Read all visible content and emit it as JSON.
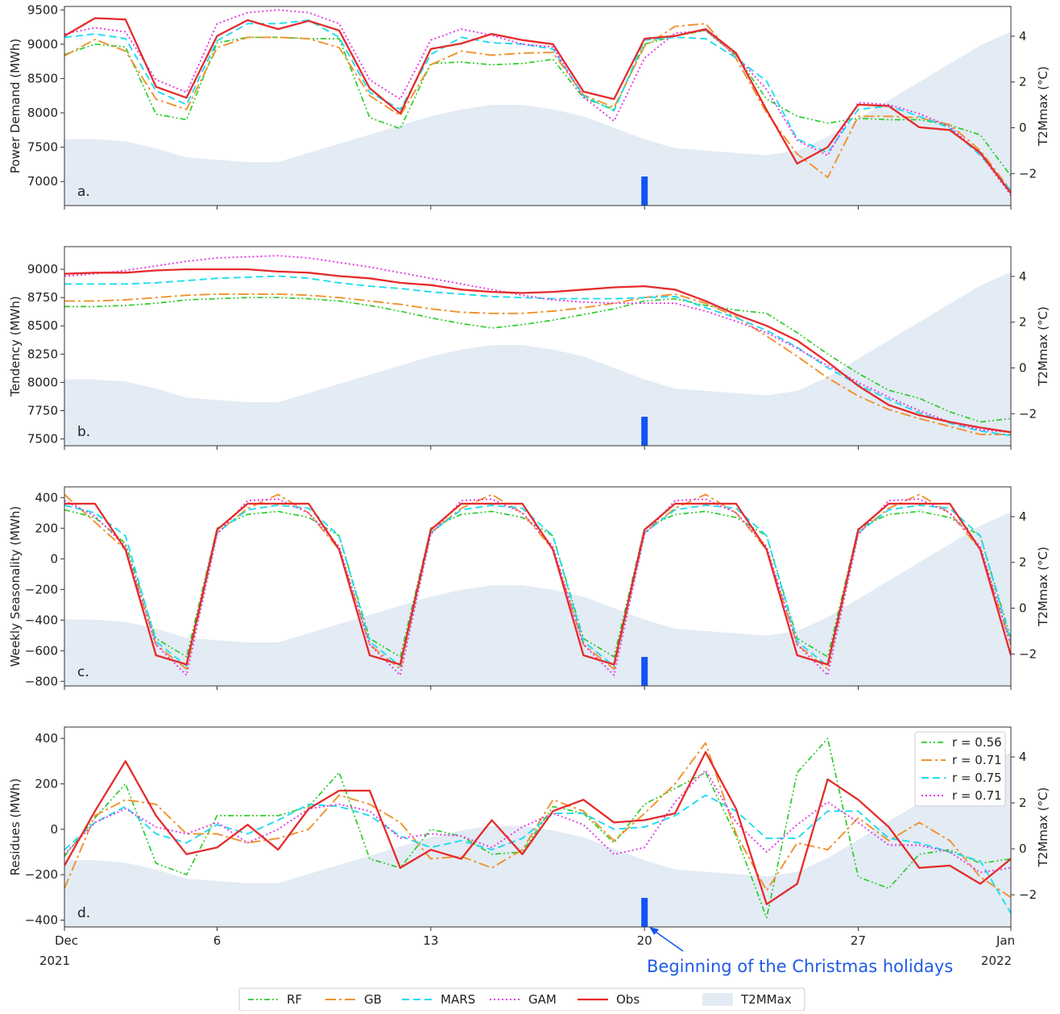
{
  "chart_data": {
    "type": "line",
    "x_ticks": [
      {
        "day": 1,
        "lines": [
          "Dec",
          "2021"
        ]
      },
      {
        "day": 6,
        "lines": [
          "6"
        ]
      },
      {
        "day": 13,
        "lines": [
          "13"
        ]
      },
      {
        "day": 20,
        "lines": [
          "20"
        ]
      },
      {
        "day": 27,
        "lines": [
          "27"
        ]
      },
      {
        "day": 32,
        "lines": [
          "Jan",
          "2022"
        ]
      }
    ],
    "xlim": [
      1,
      32
    ],
    "colors": {
      "RF": "#2bcc2b",
      "GB": "#f0922e",
      "MARS": "#1edcf0",
      "GAM": "#e23be6",
      "Obs": "#e52b2b",
      "T2MMax": "#e3ebf4",
      "marker": "#1154f2"
    },
    "t2mmax": [
      -0.5,
      -0.5,
      -0.6,
      -0.9,
      -1.3,
      -1.4,
      -1.5,
      -1.5,
      -1.1,
      -0.7,
      -0.3,
      0.1,
      0.5,
      0.8,
      1.0,
      1.0,
      0.8,
      0.5,
      0.0,
      -0.5,
      -0.9,
      -1.0,
      -1.1,
      -1.2,
      -1.0,
      -0.4,
      0.4,
      1.2,
      2.0,
      2.8,
      3.6,
      4.2,
      4.4
    ],
    "legend": {
      "series": [
        "RF",
        "GB",
        "MARS",
        "GAM",
        "Obs",
        "T2MMax"
      ],
      "corr": [
        "r = 0.56",
        "r = 0.71",
        "r = 0.75",
        "r = 0.71"
      ]
    },
    "annotation": {
      "day": 20,
      "text": "Beginning of the Christmas holidays"
    },
    "panels": [
      {
        "letter": "a.",
        "ylabel": "Power Demand (MWh)",
        "ylim": [
          6650,
          9550
        ],
        "yticks": [
          7000,
          7500,
          8000,
          8500,
          9000,
          9500
        ],
        "yticks_fmt": [
          "7000",
          "7500",
          "8000",
          "8500",
          "9000",
          "9500"
        ],
        "y2label": "T2Mmax (°C)",
        "t2lim": [
          -3.4,
          5.3
        ],
        "t2ticks": [
          -2,
          0,
          2,
          4
        ],
        "t2ticks_fmt": [
          "−2",
          "0",
          "2",
          "4"
        ],
        "series": [
          {
            "name": "RF",
            "values": [
              8850,
              9000,
              8960,
              7980,
              7900,
              9020,
              9100,
              9100,
              9080,
              9080,
              7930,
              7770,
              8720,
              8740,
              8700,
              8720,
              8780,
              8220,
              8050,
              9000,
              9120,
              9200,
              8840,
              8200,
              7950,
              7850,
              7920,
              7900,
              7900,
              7820,
              7680,
              7080
            ]
          },
          {
            "name": "GB",
            "values": [
              8830,
              9070,
              8900,
              8200,
              8050,
              8950,
              9100,
              9100,
              9080,
              8950,
              8250,
              7960,
              8700,
              8900,
              8840,
              8870,
              8880,
              8260,
              8080,
              8970,
              9260,
              9300,
              8790,
              8000,
              7400,
              7060,
              7950,
              7950,
              7930,
              7830,
              7450,
              6870
            ]
          },
          {
            "name": "MARS",
            "values": [
              9100,
              9150,
              9080,
              8320,
              8120,
              9050,
              9300,
              9300,
              9350,
              9100,
              8300,
              8050,
              8850,
              9100,
              9020,
              9000,
              8930,
              8250,
              8030,
              9060,
              9100,
              9080,
              8800,
              8460,
              7620,
              7420,
              8050,
              8100,
              7950,
              7780,
              7380,
              6870
            ]
          },
          {
            "name": "GAM",
            "values": [
              9150,
              9240,
              9180,
              8480,
              8300,
              9300,
              9460,
              9500,
              9460,
              9300,
              8480,
              8200,
              9060,
              9220,
              9130,
              9000,
              8960,
              8230,
              7880,
              8800,
              9160,
              9200,
              8830,
              8340,
              7600,
              7380,
              8150,
              8120,
              7990,
              7800,
              7400,
              6800
            ]
          },
          {
            "name": "Obs",
            "values": [
              9120,
              9380,
              9360,
              8380,
              8220,
              9120,
              9350,
              9220,
              9340,
              9200,
              8360,
              7990,
              8930,
              9010,
              9150,
              9060,
              9000,
              8310,
              8200,
              9080,
              9120,
              9220,
              8870,
              8040,
              7260,
              7500,
              8120,
              8100,
              7790,
              7750,
              7420,
              6830
            ]
          }
        ]
      },
      {
        "letter": "b.",
        "ylabel": "Tendency (MWh)",
        "ylim": [
          7440,
          9200
        ],
        "yticks": [
          7500,
          7750,
          8000,
          8250,
          8500,
          8750,
          9000
        ],
        "yticks_fmt": [
          "7500",
          "7750",
          "8000",
          "8250",
          "8500",
          "8750",
          "9000"
        ],
        "y2label": "T2Mmax (°C)",
        "t2lim": [
          -3.4,
          5.3
        ],
        "t2ticks": [
          -2,
          0,
          2,
          4
        ],
        "t2ticks_fmt": [
          "−2",
          "0",
          "2",
          "4"
        ],
        "series": [
          {
            "name": "RF",
            "values": [
              8670,
              8670,
              8680,
              8700,
              8730,
              8740,
              8750,
              8750,
              8740,
              8720,
              8680,
              8630,
              8570,
              8520,
              8480,
              8510,
              8550,
              8600,
              8650,
              8720,
              8740,
              8680,
              8640,
              8610,
              8440,
              8250,
              8080,
              7930,
              7860,
              7740,
              7650,
              7680,
              7780
            ]
          },
          {
            "name": "GB",
            "values": [
              8720,
              8720,
              8730,
              8750,
              8770,
              8780,
              8780,
              8780,
              8770,
              8750,
              8720,
              8690,
              8650,
              8620,
              8610,
              8610,
              8630,
              8660,
              8700,
              8750,
              8780,
              8700,
              8580,
              8410,
              8230,
              8040,
              7880,
              7760,
              7680,
              7610,
              7540,
              7540,
              7610
            ]
          },
          {
            "name": "MARS",
            "values": [
              8870,
              8870,
              8870,
              8880,
              8900,
              8920,
              8930,
              8940,
              8920,
              8880,
              8850,
              8830,
              8800,
              8780,
              8760,
              8750,
              8740,
              8740,
              8740,
              8750,
              8760,
              8660,
              8570,
              8460,
              8310,
              8130,
              7980,
              7850,
              7730,
              7640,
              7570,
              7530,
              7560
            ]
          },
          {
            "name": "GAM",
            "values": [
              8940,
              8960,
              8990,
              9030,
              9070,
              9100,
              9110,
              9120,
              9100,
              9060,
              9020,
              8970,
              8920,
              8870,
              8820,
              8770,
              8730,
              8710,
              8700,
              8700,
              8700,
              8630,
              8540,
              8440,
              8300,
              8150,
              8000,
              7870,
              7750,
              7650,
              7580,
              7560,
              7580
            ]
          },
          {
            "name": "Obs",
            "values": [
              8960,
              8970,
              8970,
              8990,
              9000,
              9000,
              9000,
              8980,
              8970,
              8940,
              8920,
              8880,
              8860,
              8820,
              8800,
              8790,
              8800,
              8820,
              8840,
              8850,
              8820,
              8720,
              8600,
              8500,
              8370,
              8180,
              7970,
              7800,
              7710,
              7650,
              7600,
              7560,
              7600
            ]
          }
        ]
      },
      {
        "letter": "c.",
        "ylabel": "Weekly Seasonality (MWh)",
        "ylim": [
          -830,
          470
        ],
        "yticks": [
          -800,
          -600,
          -400,
          -200,
          0,
          200,
          400
        ],
        "yticks_fmt": [
          "−800",
          "−600",
          "−400",
          "−200",
          "0",
          "200",
          "400"
        ],
        "y2label": "T2Mmax (°C)",
        "t2lim": [
          -3.4,
          5.3
        ],
        "t2ticks": [
          -2,
          0,
          2,
          4
        ],
        "t2ticks_fmt": [
          "−2",
          "0",
          "2",
          "4"
        ],
        "series": [
          {
            "name": "RF",
            "values": [
              320,
              270,
              100,
              -520,
              -640,
              200,
              290,
              310,
              270,
              150,
              -520,
              -640,
              200,
              290,
              310,
              270,
              150,
              -520,
              -640,
              200,
              290,
              310,
              270,
              150,
              -520,
              -640,
              200,
              290,
              310,
              270,
              150,
              -520
            ]
          },
          {
            "name": "GB",
            "values": [
              420,
              240,
              60,
              -560,
              -720,
              170,
              330,
              420,
              300,
              60,
              -560,
              -720,
              170,
              330,
              420,
              300,
              60,
              -560,
              -720,
              170,
              330,
              420,
              300,
              60,
              -560,
              -720,
              170,
              330,
              420,
              300,
              60,
              -560
            ]
          },
          {
            "name": "MARS",
            "values": [
              350,
              300,
              150,
              -540,
              -700,
              170,
              320,
              350,
              330,
              150,
              -540,
              -700,
              170,
              320,
              350,
              330,
              150,
              -540,
              -700,
              170,
              320,
              350,
              330,
              150,
              -540,
              -700,
              170,
              320,
              350,
              330,
              150,
              -540
            ]
          },
          {
            "name": "GAM",
            "values": [
              380,
              280,
              80,
              -560,
              -760,
              160,
              380,
              390,
              300,
              80,
              -560,
              -760,
              160,
              380,
              390,
              300,
              80,
              -560,
              -760,
              160,
              380,
              390,
              300,
              80,
              -560,
              -760,
              160,
              380,
              390,
              300,
              80,
              -560
            ]
          },
          {
            "name": "Obs",
            "values": [
              360,
              360,
              60,
              -630,
              -690,
              190,
              360,
              360,
              360,
              60,
              -630,
              -690,
              190,
              360,
              360,
              360,
              60,
              -630,
              -690,
              190,
              360,
              360,
              360,
              60,
              -630,
              -690,
              190,
              360,
              360,
              360,
              60,
              -630
            ]
          }
        ]
      },
      {
        "letter": "d.",
        "ylabel": "Residues (MWh)",
        "ylim": [
          -430,
          450
        ],
        "yticks": [
          -400,
          -200,
          0,
          200,
          400
        ],
        "yticks_fmt": [
          "−400",
          "−200",
          "0",
          "200",
          "400"
        ],
        "y2label": "T2Mmax (°C)",
        "t2lim": [
          -3.4,
          5.3
        ],
        "t2ticks": [
          -2,
          0,
          2,
          4
        ],
        "t2ticks_fmt": [
          "−2",
          "0",
          "2",
          "4"
        ],
        "series": [
          {
            "name": "RF",
            "values": [
              -120,
              50,
              200,
              -150,
              -200,
              60,
              60,
              60,
              100,
              250,
              -130,
              -170,
              0,
              -30,
              -110,
              -100,
              100,
              70,
              -60,
              110,
              180,
              250,
              -30,
              -390,
              250,
              400,
              -210,
              -260,
              -110,
              -90,
              -150,
              -130
            ]
          },
          {
            "name": "GB",
            "values": [
              -260,
              60,
              130,
              110,
              -20,
              -20,
              -60,
              -40,
              0,
              150,
              110,
              30,
              -130,
              -120,
              -170,
              -90,
              130,
              80,
              -50,
              70,
              200,
              380,
              -20,
              -270,
              -60,
              -90,
              50,
              -50,
              30,
              -50,
              -210,
              -300
            ]
          },
          {
            "name": "MARS",
            "values": [
              -90,
              30,
              100,
              -20,
              -60,
              20,
              -20,
              40,
              110,
              100,
              60,
              -30,
              -80,
              -50,
              -90,
              -40,
              70,
              70,
              0,
              10,
              60,
              150,
              80,
              -40,
              -40,
              80,
              80,
              -40,
              -60,
              -100,
              -140,
              -370
            ]
          },
          {
            "name": "GAM",
            "values": [
              -110,
              30,
              90,
              10,
              -20,
              30,
              -60,
              0,
              90,
              110,
              80,
              -40,
              -20,
              -30,
              -80,
              10,
              70,
              20,
              -110,
              -80,
              120,
              260,
              30,
              -100,
              20,
              120,
              30,
              -70,
              -70,
              -100,
              -190,
              -170
            ]
          },
          {
            "name": "Obs",
            "values": [
              -160,
              80,
              300,
              60,
              -110,
              -80,
              20,
              -90,
              90,
              170,
              170,
              -170,
              -90,
              -130,
              40,
              -110,
              80,
              130,
              30,
              40,
              70,
              340,
              90,
              -330,
              -240,
              220,
              130,
              10,
              -170,
              -160,
              -240,
              -130
            ]
          }
        ]
      }
    ]
  }
}
